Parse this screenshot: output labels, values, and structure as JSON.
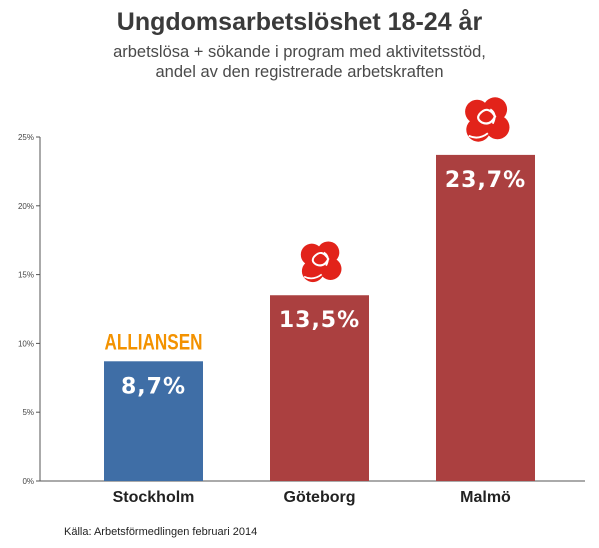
{
  "chart_data": {
    "type": "bar",
    "title": "Ungdomsarbetslöshet 18-24 år",
    "subtitle_lines": [
      "arbetslösa + sökande i program med aktivitetsstöd,",
      "andel av den registrerade arbetskraften"
    ],
    "categories": [
      "Stockholm",
      "Göteborg",
      "Malmö"
    ],
    "values": [
      8.7,
      13.5,
      23.7
    ],
    "value_labels": [
      "8,7%",
      "13,5%",
      "23,7%"
    ],
    "bar_colors": [
      "#3f6ea6",
      "#ab4040",
      "#ab4040"
    ],
    "ylim": [
      0,
      25
    ],
    "yticks": [
      0,
      5,
      10,
      15,
      20,
      25
    ],
    "ytick_labels": [
      "0%",
      "5%",
      "10%",
      "15%",
      "20%",
      "25%"
    ],
    "grid": false,
    "xlabel": "",
    "ylabel": "",
    "bar_logos": [
      "alliansen-logo",
      "rose-icon",
      "rose-icon"
    ],
    "logo_text": "ALLIANSEN"
  },
  "source": "Källa: Arbetsförmedlingen februari 2014",
  "colors": {
    "axis": "#555555",
    "logo_orange": "#f39200",
    "rose_red": "#e2231a"
  }
}
